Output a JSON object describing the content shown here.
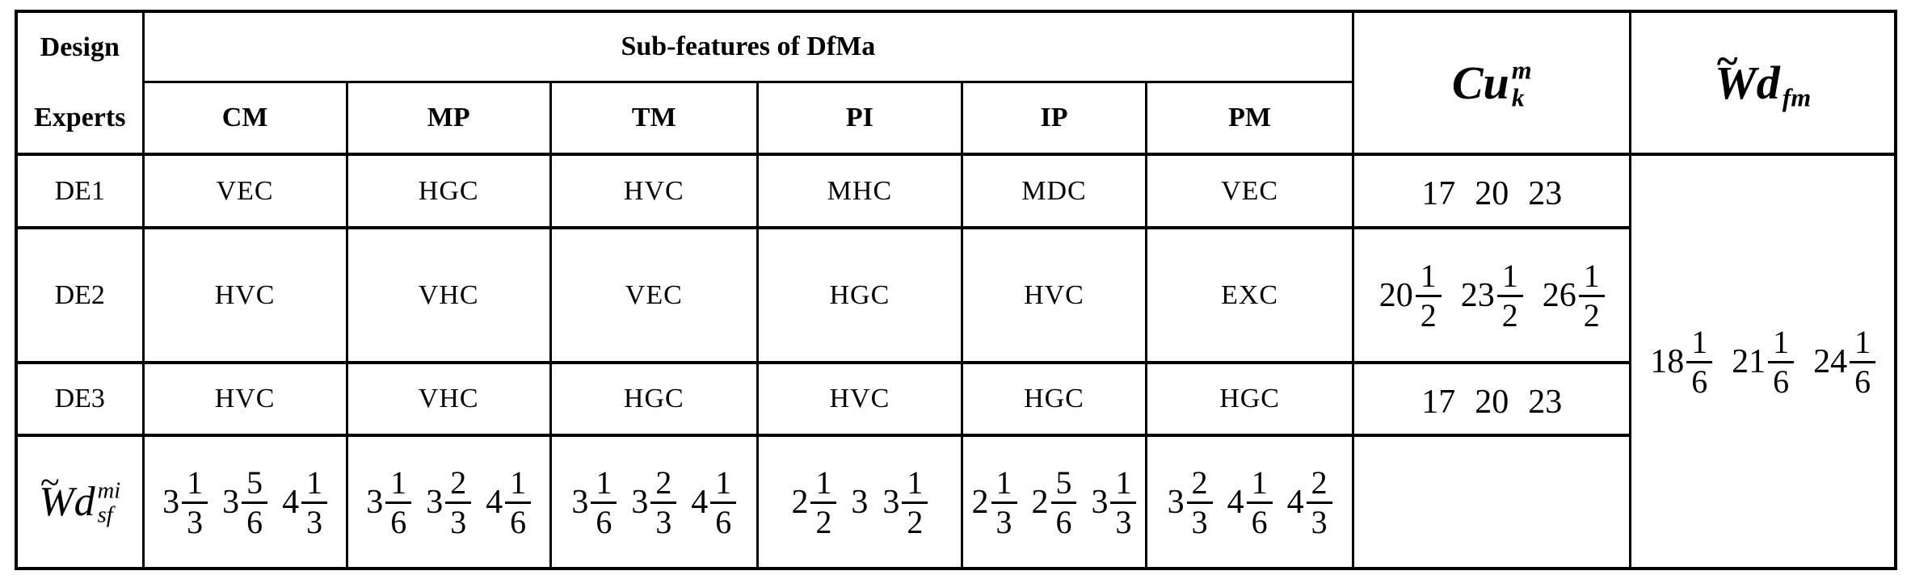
{
  "page": {
    "background": "#ffffff",
    "line_color": "#000000"
  },
  "table": {
    "header": {
      "design_experts": "Design Experts",
      "subfeatures_title": "Sub-features of DfMa",
      "subfeature_cols": [
        "CM",
        "MP",
        "TM",
        "PI",
        "IP",
        "PM"
      ],
      "cu_label": {
        "base": "Cu",
        "sup": "m",
        "sub": "k"
      },
      "wd_fm_label": {
        "tilde": "~",
        "base": "Wd",
        "sub": "fm"
      }
    },
    "rows": [
      {
        "label": "DE1",
        "codes": [
          "VEC",
          "HGC",
          "HVC",
          "MHC",
          "MDC",
          "VEC"
        ],
        "cu": [
          {
            "w": "17"
          },
          {
            "w": "20"
          },
          {
            "w": "23"
          }
        ]
      },
      {
        "label": "DE2",
        "codes": [
          "HVC",
          "VHC",
          "VEC",
          "HGC",
          "HVC",
          "EXC"
        ],
        "cu": [
          {
            "w": "20",
            "n": "1",
            "d": "2"
          },
          {
            "w": "23",
            "n": "1",
            "d": "2"
          },
          {
            "w": "26",
            "n": "1",
            "d": "2"
          }
        ]
      },
      {
        "label": "DE3",
        "codes": [
          "HVC",
          "VHC",
          "HGC",
          "HVC",
          "HGC",
          "HGC"
        ],
        "cu": [
          {
            "w": "17"
          },
          {
            "w": "20"
          },
          {
            "w": "23"
          }
        ]
      }
    ],
    "weights_label": {
      "tilde": "~",
      "base": "Wd",
      "sup": "mi",
      "sub": "sf"
    },
    "weights": [
      [
        {
          "w": "3",
          "n": "1",
          "d": "3"
        },
        {
          "w": "3",
          "n": "5",
          "d": "6"
        },
        {
          "w": "4",
          "n": "1",
          "d": "3"
        }
      ],
      [
        {
          "w": "3",
          "n": "1",
          "d": "6"
        },
        {
          "w": "3",
          "n": "2",
          "d": "3"
        },
        {
          "w": "4",
          "n": "1",
          "d": "6"
        }
      ],
      [
        {
          "w": "3",
          "n": "1",
          "d": "6"
        },
        {
          "w": "3",
          "n": "2",
          "d": "3"
        },
        {
          "w": "4",
          "n": "1",
          "d": "6"
        }
      ],
      [
        {
          "w": "2",
          "n": "1",
          "d": "2"
        },
        {
          "w": "3"
        },
        {
          "w": "3",
          "n": "1",
          "d": "2"
        }
      ],
      [
        {
          "w": "2",
          "n": "1",
          "d": "3"
        },
        {
          "w": "2",
          "n": "5",
          "d": "6"
        },
        {
          "w": "3",
          "n": "1",
          "d": "3"
        }
      ],
      [
        {
          "w": "3",
          "n": "2",
          "d": "3"
        },
        {
          "w": "4",
          "n": "1",
          "d": "6"
        },
        {
          "w": "4",
          "n": "2",
          "d": "3"
        }
      ]
    ],
    "cu_bottom": "",
    "wd_fm_values": [
      {
        "w": "18",
        "n": "1",
        "d": "6"
      },
      {
        "w": "21",
        "n": "1",
        "d": "6"
      },
      {
        "w": "24",
        "n": "1",
        "d": "6"
      }
    ]
  }
}
